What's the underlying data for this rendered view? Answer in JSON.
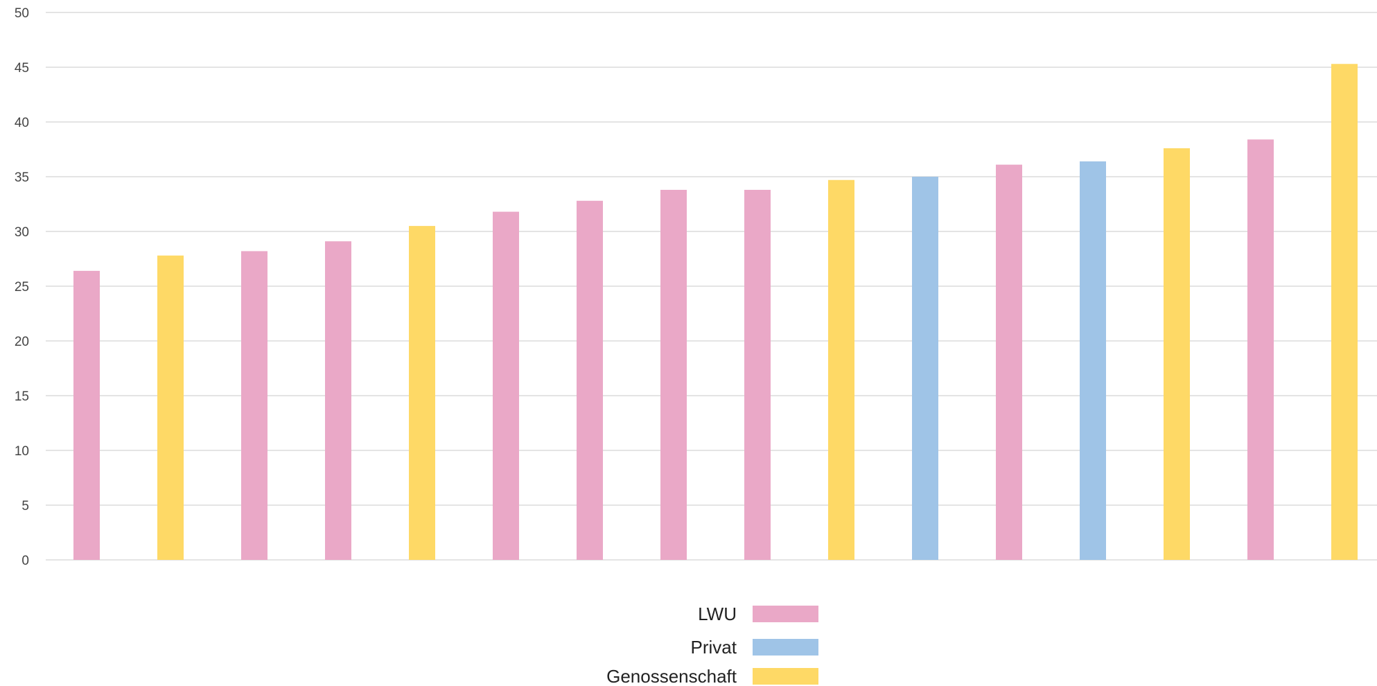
{
  "chart_data": {
    "type": "bar",
    "title": "",
    "xlabel": "",
    "ylabel": "",
    "ylim": [
      0,
      50
    ],
    "yticks": [
      0,
      5,
      10,
      15,
      20,
      25,
      30,
      35,
      40,
      45,
      50
    ],
    "grid": true,
    "legend_position": "bottom-center",
    "categories": [],
    "series_names": [
      "LWU",
      "Privat",
      "Genossenschaft"
    ],
    "series_colors": {
      "LWU": "#eaa8c7",
      "Privat": "#9fc4e7",
      "Genossenschaft": "#fed966"
    },
    "bars": [
      {
        "series": "LWU",
        "value": 26.4
      },
      {
        "series": "Genossenschaft",
        "value": 27.8
      },
      {
        "series": "LWU",
        "value": 28.2
      },
      {
        "series": "LWU",
        "value": 29.1
      },
      {
        "series": "Genossenschaft",
        "value": 30.5
      },
      {
        "series": "LWU",
        "value": 31.8
      },
      {
        "series": "LWU",
        "value": 32.8
      },
      {
        "series": "LWU",
        "value": 33.8
      },
      {
        "series": "LWU",
        "value": 33.8
      },
      {
        "series": "Genossenschaft",
        "value": 34.7
      },
      {
        "series": "Privat",
        "value": 35.0
      },
      {
        "series": "LWU",
        "value": 36.1
      },
      {
        "series": "Privat",
        "value": 36.4
      },
      {
        "series": "Genossenschaft",
        "value": 37.6
      },
      {
        "series": "LWU",
        "value": 38.4
      },
      {
        "series": "Genossenschaft",
        "value": 45.3
      }
    ]
  }
}
